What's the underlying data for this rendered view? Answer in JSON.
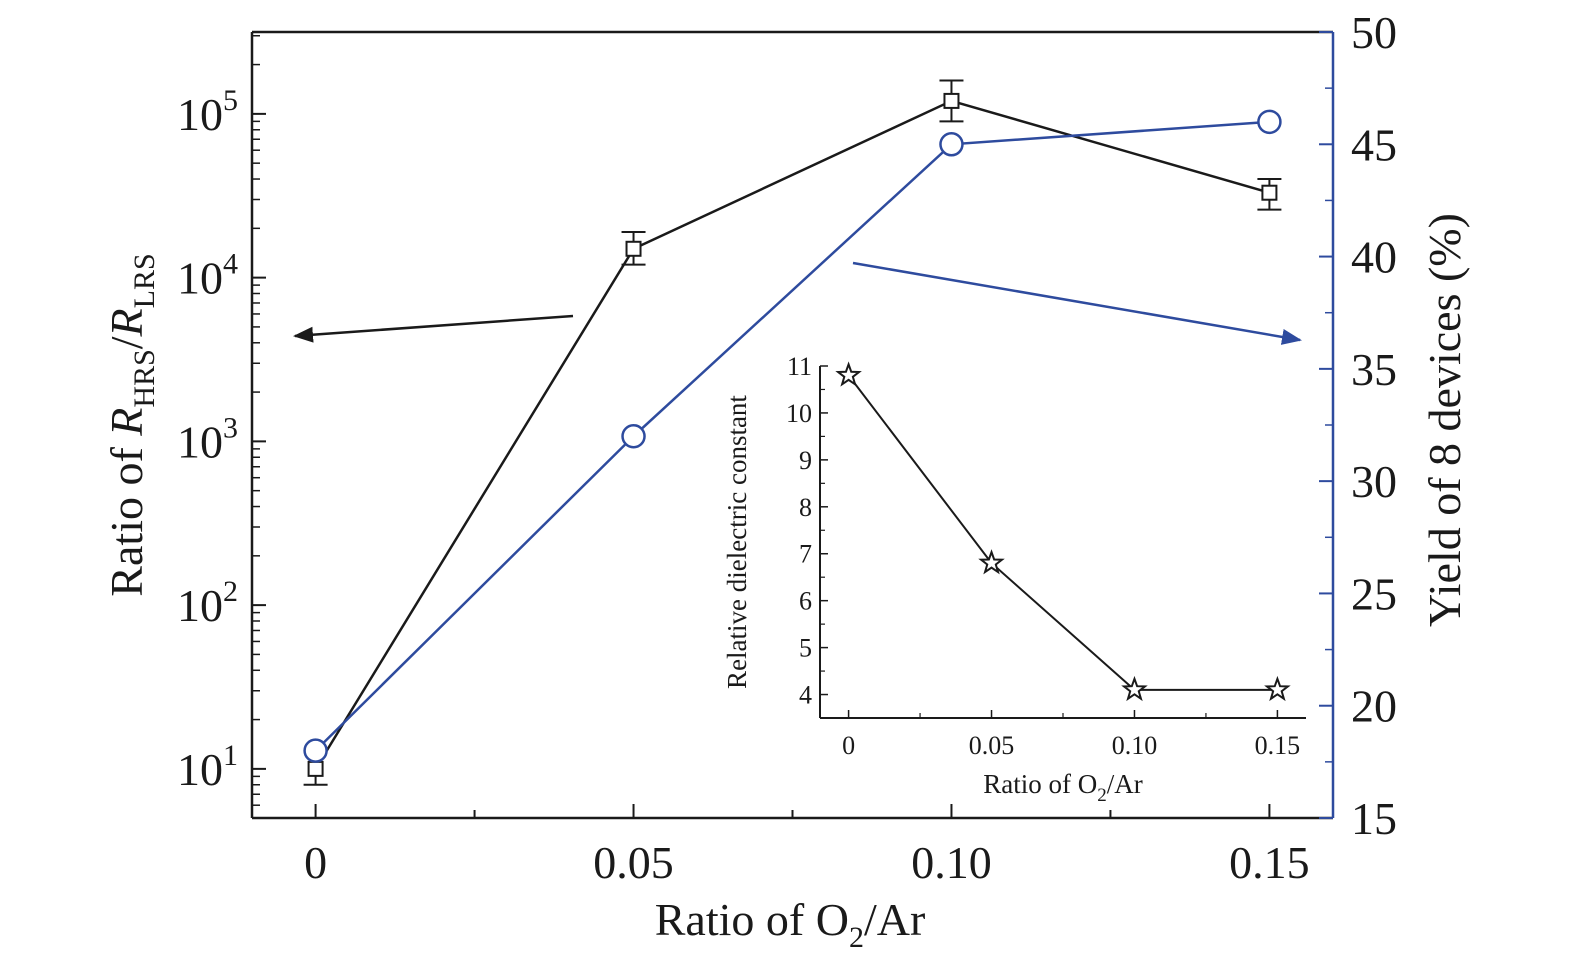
{
  "chart_data": [
    {
      "id": "main",
      "type": "line",
      "xlabel": "Ratio of O2/Ar",
      "xlabel_parts": {
        "prefix": "Ratio of O",
        "sub": "2",
        "suffix": "/Ar"
      },
      "ylabel_left_parts": {
        "prefix": "Ratio of ",
        "r1": "R",
        "sub1": "HRS",
        "slash": "/",
        "r2": "R",
        "sub2": "LRS"
      },
      "ylabel_right": "Yield of 8 devices (%)",
      "x": [
        0,
        0.05,
        0.1,
        0.15
      ],
      "xlim": [
        -0.01,
        0.16
      ],
      "xticks": [
        "0",
        "0.05",
        "0.10",
        "0.15"
      ],
      "ylim_left_log": [
        0.7,
        5.5
      ],
      "yticks_left": [
        {
          "value": 1,
          "base": "10",
          "exp": "1"
        },
        {
          "value": 2,
          "base": "10",
          "exp": "2"
        },
        {
          "value": 3,
          "base": "10",
          "exp": "3"
        },
        {
          "value": 4,
          "base": "10",
          "exp": "4"
        },
        {
          "value": 5,
          "base": "10",
          "exp": "5"
        }
      ],
      "ylim_right": [
        15,
        50
      ],
      "yticks_right": [
        "15",
        "20",
        "25",
        "30",
        "35",
        "40",
        "45",
        "50"
      ],
      "series": [
        {
          "name": "Ratio of RHRS/RLRS",
          "axis": "left",
          "color": "#1a1a1a",
          "marker": "square",
          "values": [
            10,
            15000,
            120000,
            33000
          ],
          "err_low": [
            8,
            12000,
            90000,
            26000
          ],
          "err_high": [
            13,
            19000,
            160000,
            40000
          ]
        },
        {
          "name": "Yield of 8 devices",
          "axis": "right",
          "color": "#2e4b9e",
          "marker": "circle",
          "values": [
            18,
            32,
            45,
            46
          ]
        }
      ],
      "annotations": [
        {
          "type": "arrow",
          "points_to": "left-axis",
          "color": "#1a1a1a"
        },
        {
          "type": "arrow",
          "points_to": "right-axis",
          "color": "#2e4b9e"
        }
      ],
      "axis_colors": {
        "left": "#1a1a1a",
        "right": "#2e4b9e"
      }
    },
    {
      "id": "inset",
      "type": "line",
      "xlabel": "Ratio of O2/Ar",
      "xlabel_parts": {
        "prefix": "Ratio of O",
        "sub": "2",
        "suffix": "/Ar"
      },
      "ylabel": "Relative dielectric constant",
      "x": [
        0,
        0.05,
        0.1,
        0.15
      ],
      "xlim": [
        -0.01,
        0.16
      ],
      "xticks": [
        "0",
        "0.05",
        "0.10",
        "0.15"
      ],
      "ylim": [
        3.5,
        11
      ],
      "yticks": [
        "4",
        "5",
        "6",
        "7",
        "8",
        "9",
        "10",
        "11"
      ],
      "series": [
        {
          "name": "Relative dielectric constant",
          "color": "#1a1a1a",
          "marker": "star",
          "values": [
            10.8,
            6.8,
            4.1,
            4.1
          ]
        }
      ]
    }
  ]
}
